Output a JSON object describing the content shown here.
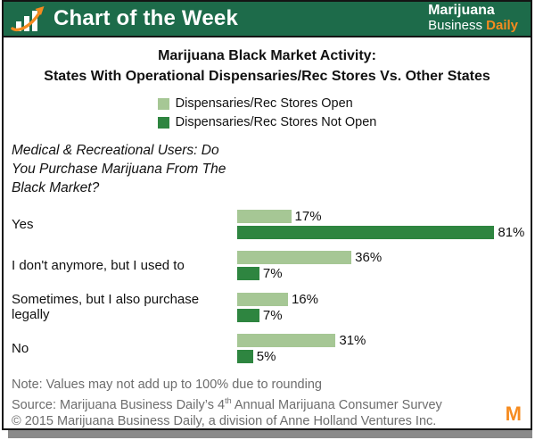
{
  "header": {
    "title": "Chart of the Week",
    "brand_line1": "Marijuana",
    "brand_line2_white": "Business ",
    "brand_line2_orange": "Daily"
  },
  "chart": {
    "title_line1": "Marijuana Black Market Activity:",
    "title_line2": "States With Operational Dispensaries/Rec Stores Vs. Other States",
    "question": "Medical & Recreational Users: Do You Purchase Marijuana From The Black Market?"
  },
  "legend": [
    {
      "label": "Dispensaries/Rec Stores Open",
      "color": "#a6c795"
    },
    {
      "label": "Dispensaries/Rec Stores Not Open",
      "color": "#2e8540"
    }
  ],
  "chart_data": {
    "type": "bar",
    "orientation": "horizontal",
    "title": "Marijuana Black Market Activity: States With Operational Dispensaries/Rec Stores Vs. Other States",
    "categories": [
      "Yes",
      "I don't anymore, but I used to",
      "Sometimes, but I also purchase legally",
      "No"
    ],
    "series": [
      {
        "name": "Dispensaries/Rec Stores Open",
        "color": "#a6c795",
        "values": [
          17,
          36,
          16,
          31
        ]
      },
      {
        "name": "Dispensaries/Rec Stores Not Open",
        "color": "#2e8540",
        "values": [
          81,
          7,
          7,
          5
        ]
      }
    ],
    "value_suffix": "%",
    "xlim": [
      0,
      85
    ],
    "grid": false,
    "legend_position": "top"
  },
  "footer": {
    "note": "Note: Values may not add up to 100% due to rounding",
    "source_prefix": "Source: Marijuana Business Daily’s 4",
    "source_sup": "th",
    "source_suffix": " Annual Marijuana Consumer Survey",
    "copyright": "© 2015 Marijuana Business Daily, a division of Anne Holland Ventures Inc.",
    "logo_letter": "M"
  },
  "colors": {
    "header_green": "#1d6b4a",
    "bar_light_green": "#a6c795",
    "bar_dark_green": "#2e8540",
    "accent_orange": "#f68b1f",
    "footer_gray": "#6d6d6d"
  }
}
